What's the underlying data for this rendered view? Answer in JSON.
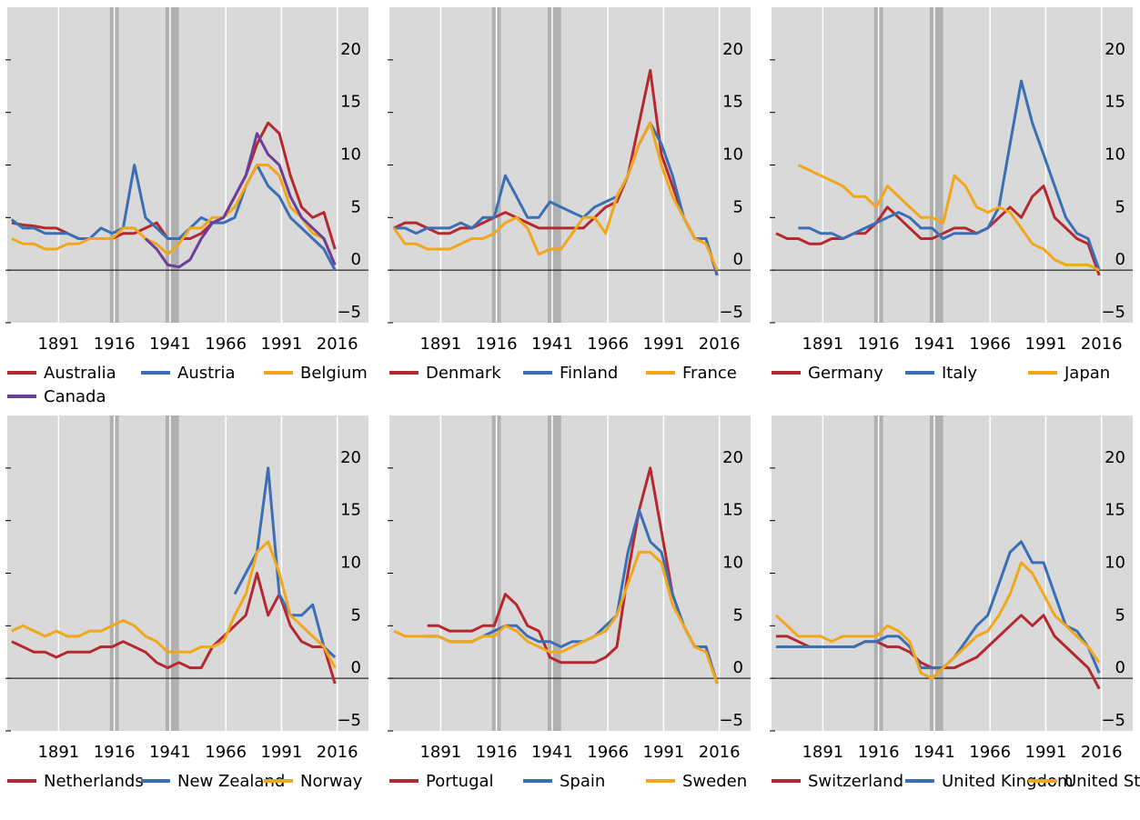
{
  "chart_data": [
    {
      "type": "line",
      "xlim": [
        1868,
        2030
      ],
      "ylim": [
        -5,
        25
      ],
      "xticks": [
        1891,
        1916,
        1941,
        1966,
        1991,
        2016
      ],
      "yticks": [
        -5,
        0,
        5,
        10,
        15,
        20
      ],
      "grid": true,
      "shaded_periods": [
        [
          1914,
          1918
        ],
        [
          1939,
          1945
        ]
      ],
      "x": [
        1870,
        1875,
        1880,
        1885,
        1890,
        1895,
        1900,
        1905,
        1910,
        1915,
        1920,
        1925,
        1930,
        1935,
        1940,
        1945,
        1950,
        1955,
        1960,
        1965,
        1970,
        1975,
        1980,
        1985,
        1990,
        1995,
        2000,
        2005,
        2010,
        2015
      ],
      "series": [
        {
          "name": "Australia",
          "color": "#b5292e",
          "values": [
            4.5,
            4.3,
            4.2,
            4,
            4,
            3.5,
            3,
            3,
            3,
            3,
            3.5,
            3.5,
            4,
            4.5,
            3,
            3,
            3,
            3.5,
            4.5,
            5,
            7,
            9,
            12,
            14,
            13,
            9,
            6,
            5,
            5.5,
            2
          ]
        },
        {
          "name": "Austria",
          "color": "#3a6fb5",
          "values": [
            4.8,
            4,
            4,
            3.5,
            3.5,
            3.5,
            3,
            3,
            4,
            3.5,
            4,
            10,
            5,
            4,
            3,
            3,
            4,
            5,
            4.5,
            4.5,
            5,
            8,
            10,
            8,
            7,
            5,
            4,
            3,
            2,
            0
          ]
        },
        {
          "name": "Belgium",
          "color": "#f2a71b",
          "values": [
            3,
            2.5,
            2.5,
            2,
            2,
            2.5,
            2.5,
            3,
            3,
            3,
            4,
            4,
            3,
            2.5,
            1.5,
            2.5,
            4,
            4,
            5,
            5,
            6,
            8,
            10,
            10,
            9,
            6,
            5,
            3.5,
            3,
            0.5
          ]
        },
        {
          "name": "Canada",
          "color": "#6b3e98",
          "values": [
            null,
            null,
            null,
            null,
            null,
            null,
            null,
            null,
            null,
            null,
            null,
            null,
            3,
            2,
            0.5,
            0.3,
            1,
            3,
            4.5,
            5,
            7,
            9,
            13,
            11,
            10,
            7,
            5,
            4,
            3,
            0.5
          ]
        }
      ]
    },
    {
      "type": "line",
      "xlim": [
        1868,
        2030
      ],
      "ylim": [
        -5,
        25
      ],
      "xticks": [
        1891,
        1916,
        1941,
        1966,
        1991,
        2016
      ],
      "yticks": [
        -5,
        0,
        5,
        10,
        15,
        20
      ],
      "grid": true,
      "shaded_periods": [
        [
          1914,
          1918
        ],
        [
          1939,
          1945
        ]
      ],
      "x": [
        1870,
        1875,
        1880,
        1885,
        1890,
        1895,
        1900,
        1905,
        1910,
        1915,
        1920,
        1925,
        1930,
        1935,
        1940,
        1945,
        1950,
        1955,
        1960,
        1965,
        1970,
        1975,
        1980,
        1985,
        1990,
        1995,
        2000,
        2005,
        2010,
        2015
      ],
      "series": [
        {
          "name": "Denmark",
          "color": "#b5292e",
          "values": [
            4,
            4.5,
            4.5,
            4,
            3.5,
            3.5,
            4,
            4,
            4.5,
            5,
            5.5,
            5,
            4.5,
            4,
            4,
            4,
            4,
            4,
            5,
            6,
            6.5,
            9,
            14,
            19,
            11,
            8,
            5,
            3,
            3,
            -0.5
          ]
        },
        {
          "name": "Finland",
          "color": "#3a6fb5",
          "values": [
            4,
            4,
            3.5,
            4,
            4,
            4,
            4.5,
            4,
            5,
            5,
            9,
            7,
            5,
            5,
            6.5,
            6,
            5.5,
            5,
            6,
            6.5,
            7,
            9,
            12,
            14,
            12,
            9,
            5,
            3,
            3,
            -0.5
          ]
        },
        {
          "name": "France",
          "color": "#f2a71b",
          "values": [
            4,
            2.5,
            2.5,
            2,
            2,
            2,
            2.5,
            3,
            3,
            3.5,
            4.5,
            5,
            4,
            1.5,
            2,
            2,
            3.5,
            5,
            5,
            3.5,
            7,
            9,
            12,
            14,
            10,
            7,
            5,
            3,
            2.5,
            0
          ]
        }
      ]
    },
    {
      "type": "line",
      "xlim": [
        1868,
        2030
      ],
      "ylim": [
        -5,
        25
      ],
      "xticks": [
        1891,
        1916,
        1941,
        1966,
        1991,
        2016
      ],
      "yticks": [
        -5,
        0,
        5,
        10,
        15,
        20
      ],
      "grid": true,
      "shaded_periods": [
        [
          1914,
          1918
        ],
        [
          1939,
          1945
        ]
      ],
      "x": [
        1870,
        1875,
        1880,
        1885,
        1890,
        1895,
        1900,
        1905,
        1910,
        1915,
        1920,
        1925,
        1930,
        1935,
        1940,
        1945,
        1950,
        1955,
        1960,
        1965,
        1970,
        1975,
        1980,
        1985,
        1990,
        1995,
        2000,
        2005,
        2010,
        2015
      ],
      "series": [
        {
          "name": "Germany",
          "color": "#b5292e",
          "values": [
            3.5,
            3,
            3,
            2.5,
            2.5,
            3,
            3,
            3.5,
            3.5,
            4.5,
            6,
            5,
            4,
            3,
            3,
            3.5,
            4,
            4,
            3.5,
            4,
            5,
            6,
            5,
            7,
            8,
            5,
            4,
            3,
            2.5,
            -0.5
          ]
        },
        {
          "name": "Italy",
          "color": "#3a6fb5",
          "values": [
            null,
            null,
            4,
            4,
            3.5,
            3.5,
            3,
            3.5,
            4,
            4.5,
            5,
            5.5,
            5,
            4,
            4,
            3,
            3.5,
            3.5,
            3.5,
            4,
            6,
            12,
            18,
            14,
            11,
            8,
            5,
            3.5,
            3,
            0
          ]
        },
        {
          "name": "Japan",
          "color": "#f2a71b",
          "values": [
            null,
            null,
            10,
            9.5,
            9,
            8.5,
            8,
            7,
            7,
            6,
            8,
            7,
            6,
            5,
            5,
            4.5,
            9,
            8,
            6,
            5.5,
            6,
            5.5,
            4,
            2.5,
            2,
            1,
            0.5,
            0.5,
            0.5,
            0
          ]
        }
      ]
    },
    {
      "type": "line",
      "xlim": [
        1868,
        2030
      ],
      "ylim": [
        -5,
        25
      ],
      "xticks": [
        1891,
        1916,
        1941,
        1966,
        1991,
        2016
      ],
      "yticks": [
        -5,
        0,
        5,
        10,
        15,
        20
      ],
      "grid": true,
      "shaded_periods": [
        [
          1914,
          1918
        ],
        [
          1939,
          1945
        ]
      ],
      "x": [
        1870,
        1875,
        1880,
        1885,
        1890,
        1895,
        1900,
        1905,
        1910,
        1915,
        1920,
        1925,
        1930,
        1935,
        1940,
        1945,
        1950,
        1955,
        1960,
        1965,
        1970,
        1975,
        1980,
        1985,
        1990,
        1995,
        2000,
        2005,
        2010,
        2015
      ],
      "series": [
        {
          "name": "Netherlands",
          "color": "#b5292e",
          "values": [
            3.5,
            3,
            2.5,
            2.5,
            2,
            2.5,
            2.5,
            2.5,
            3,
            3,
            3.5,
            3,
            2.5,
            1.5,
            1,
            1.5,
            1,
            1,
            3,
            4,
            5,
            6,
            10,
            6,
            8,
            5,
            3.5,
            3,
            3,
            -0.5
          ]
        },
        {
          "name": "New Zealand",
          "color": "#3a6fb5",
          "values": [
            null,
            null,
            null,
            null,
            null,
            null,
            null,
            null,
            null,
            null,
            null,
            null,
            null,
            null,
            null,
            null,
            null,
            null,
            null,
            null,
            8,
            10,
            12,
            20,
            8,
            6,
            6,
            7,
            3,
            2
          ]
        },
        {
          "name": "Norway",
          "color": "#f2a71b",
          "values": [
            4.5,
            5,
            4.5,
            4,
            4.5,
            4,
            4,
            4.5,
            4.5,
            5,
            5.5,
            5,
            4,
            3.5,
            2.5,
            2.5,
            2.5,
            3,
            3,
            3.5,
            6,
            8,
            12,
            13,
            10,
            6,
            5,
            4,
            3,
            1
          ]
        }
      ]
    },
    {
      "type": "line",
      "xlim": [
        1868,
        2030
      ],
      "ylim": [
        -5,
        25
      ],
      "xticks": [
        1891,
        1916,
        1941,
        1966,
        1991,
        2016
      ],
      "yticks": [
        -5,
        0,
        5,
        10,
        15,
        20
      ],
      "grid": true,
      "shaded_periods": [
        [
          1914,
          1918
        ],
        [
          1939,
          1945
        ]
      ],
      "x": [
        1870,
        1875,
        1880,
        1885,
        1890,
        1895,
        1900,
        1905,
        1910,
        1915,
        1920,
        1925,
        1930,
        1935,
        1940,
        1945,
        1950,
        1955,
        1960,
        1965,
        1970,
        1975,
        1980,
        1985,
        1990,
        1995,
        2000,
        2005,
        2010,
        2015
      ],
      "series": [
        {
          "name": "Portugal",
          "color": "#b5292e",
          "values": [
            null,
            null,
            null,
            5,
            5,
            4.5,
            4.5,
            4.5,
            5,
            5,
            8,
            7,
            5,
            4.5,
            2,
            1.5,
            1.5,
            1.5,
            1.5,
            2,
            3,
            10,
            16,
            20,
            14,
            8,
            5,
            3,
            3,
            -0.5
          ]
        },
        {
          "name": "Spain",
          "color": "#3a6fb5",
          "values": [
            null,
            null,
            null,
            4,
            4,
            3.5,
            3.5,
            3.5,
            4,
            4.5,
            5,
            5,
            4,
            3.5,
            3.5,
            3,
            3.5,
            3.5,
            4,
            5,
            6,
            12,
            16,
            13,
            12,
            8,
            5,
            3,
            3,
            -0.5
          ]
        },
        {
          "name": "Sweden",
          "color": "#f2a71b",
          "values": [
            4.5,
            4,
            4,
            4,
            4,
            3.5,
            3.5,
            3.5,
            4,
            4,
            5,
            4.5,
            3.5,
            3,
            2.5,
            2.5,
            3,
            3.5,
            4,
            4.5,
            6,
            9,
            12,
            12,
            11,
            7,
            5,
            3,
            2.5,
            -0.5
          ]
        }
      ]
    },
    {
      "type": "line",
      "xlim": [
        1868,
        2030
      ],
      "ylim": [
        -5,
        25
      ],
      "xticks": [
        1891,
        1916,
        1941,
        1966,
        1991,
        2016
      ],
      "yticks": [
        -5,
        0,
        5,
        10,
        15,
        20
      ],
      "grid": true,
      "shaded_periods": [
        [
          1914,
          1918
        ],
        [
          1939,
          1945
        ]
      ],
      "x": [
        1870,
        1875,
        1880,
        1885,
        1890,
        1895,
        1900,
        1905,
        1910,
        1915,
        1920,
        1925,
        1930,
        1935,
        1940,
        1945,
        1950,
        1955,
        1960,
        1965,
        1970,
        1975,
        1980,
        1985,
        1990,
        1995,
        2000,
        2005,
        2010,
        2015
      ],
      "series": [
        {
          "name": "Switzerland",
          "color": "#b5292e",
          "values": [
            4,
            4,
            3.5,
            3,
            3,
            3,
            3,
            3,
            3.5,
            3.5,
            3,
            3,
            2.5,
            1.5,
            1,
            1,
            1,
            1.5,
            2,
            3,
            4,
            5,
            6,
            5,
            6,
            4,
            3,
            2,
            1,
            -1
          ]
        },
        {
          "name": "United Kingdom",
          "color": "#3a6fb5",
          "values": [
            3,
            3,
            3,
            3,
            3,
            3,
            3,
            3,
            3.5,
            3.5,
            4,
            4,
            3,
            1,
            1,
            1,
            2,
            3.5,
            5,
            6,
            9,
            12,
            13,
            11,
            11,
            8,
            5,
            4.5,
            3,
            0.5
          ]
        },
        {
          "name": "United States",
          "color": "#f2a71b",
          "values": [
            6,
            5,
            4,
            4,
            4,
            3.5,
            4,
            4,
            4,
            4,
            5,
            4.5,
            3.5,
            0.5,
            0,
            1,
            2,
            3,
            4,
            4.5,
            6,
            8,
            11,
            10,
            8,
            6,
            5,
            4,
            3,
            1.5
          ]
        }
      ]
    }
  ]
}
